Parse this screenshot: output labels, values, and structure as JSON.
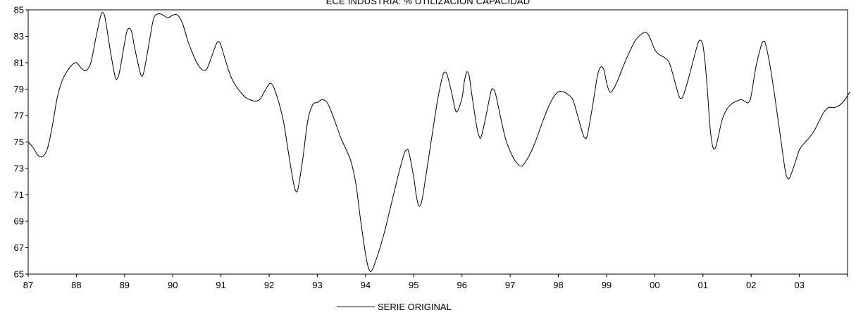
{
  "chart_data": {
    "type": "line",
    "title": "ECE INDUSTRIA: % UTILIZACIÓN CAPACIDAD",
    "xlabel": "",
    "ylabel": "",
    "xlim": [
      1987,
      2004
    ],
    "ylim": [
      65,
      85
    ],
    "yticks": [
      "65",
      "67",
      "69",
      "71",
      "73",
      "75",
      "77",
      "79",
      "81",
      "83",
      "85"
    ],
    "xticks": [
      "87",
      "88",
      "89",
      "90",
      "91",
      "92",
      "93",
      "94",
      "95",
      "96",
      "97",
      "98",
      "99",
      "00",
      "01",
      "02",
      "03"
    ],
    "legend": "bottom-center",
    "series": [
      {
        "name": "SERIE ORIGINAL",
        "color": "#000000",
        "points": [
          [
            1987.0,
            75.0
          ],
          [
            1987.1,
            74.6
          ],
          [
            1987.2,
            74.0
          ],
          [
            1987.3,
            73.9
          ],
          [
            1987.4,
            74.5
          ],
          [
            1987.5,
            76.2
          ],
          [
            1987.6,
            78.3
          ],
          [
            1987.7,
            79.6
          ],
          [
            1987.8,
            80.3
          ],
          [
            1987.9,
            80.8
          ],
          [
            1988.0,
            81.0
          ],
          [
            1988.1,
            80.6
          ],
          [
            1988.2,
            80.4
          ],
          [
            1988.3,
            81.0
          ],
          [
            1988.4,
            82.8
          ],
          [
            1988.5,
            84.5
          ],
          [
            1988.55,
            84.8
          ],
          [
            1988.6,
            84.3
          ],
          [
            1988.7,
            82.0
          ],
          [
            1988.8,
            80.0
          ],
          [
            1988.85,
            79.8
          ],
          [
            1988.9,
            80.4
          ],
          [
            1989.0,
            82.5
          ],
          [
            1989.05,
            83.4
          ],
          [
            1989.1,
            83.6
          ],
          [
            1989.15,
            83.3
          ],
          [
            1989.2,
            82.3
          ],
          [
            1989.3,
            80.6
          ],
          [
            1989.35,
            80.0
          ],
          [
            1989.4,
            80.3
          ],
          [
            1989.5,
            82.3
          ],
          [
            1989.6,
            84.3
          ],
          [
            1989.7,
            84.7
          ],
          [
            1989.8,
            84.6
          ],
          [
            1989.9,
            84.4
          ],
          [
            1990.0,
            84.6
          ],
          [
            1990.1,
            84.6
          ],
          [
            1990.2,
            84.0
          ],
          [
            1990.3,
            82.8
          ],
          [
            1990.4,
            81.8
          ],
          [
            1990.5,
            81.0
          ],
          [
            1990.6,
            80.5
          ],
          [
            1990.7,
            80.5
          ],
          [
            1990.8,
            81.4
          ],
          [
            1990.9,
            82.4
          ],
          [
            1990.95,
            82.6
          ],
          [
            1991.0,
            82.3
          ],
          [
            1991.1,
            81.1
          ],
          [
            1991.2,
            80.0
          ],
          [
            1991.3,
            79.3
          ],
          [
            1991.4,
            78.8
          ],
          [
            1991.5,
            78.4
          ],
          [
            1991.6,
            78.2
          ],
          [
            1991.7,
            78.1
          ],
          [
            1991.8,
            78.2
          ],
          [
            1991.9,
            78.8
          ],
          [
            1992.0,
            79.4
          ],
          [
            1992.05,
            79.4
          ],
          [
            1992.1,
            79.1
          ],
          [
            1992.2,
            78.0
          ],
          [
            1992.3,
            76.5
          ],
          [
            1992.4,
            74.2
          ],
          [
            1992.5,
            72.0
          ],
          [
            1992.55,
            71.3
          ],
          [
            1992.6,
            71.5
          ],
          [
            1992.7,
            73.8
          ],
          [
            1992.8,
            76.6
          ],
          [
            1992.9,
            77.8
          ],
          [
            1993.0,
            78.0
          ],
          [
            1993.1,
            78.2
          ],
          [
            1993.2,
            78.0
          ],
          [
            1993.3,
            77.2
          ],
          [
            1993.4,
            76.2
          ],
          [
            1993.5,
            75.2
          ],
          [
            1993.6,
            74.4
          ],
          [
            1993.7,
            73.5
          ],
          [
            1993.8,
            71.8
          ],
          [
            1993.9,
            69.0
          ],
          [
            1994.0,
            66.5
          ],
          [
            1994.05,
            65.6
          ],
          [
            1994.1,
            65.2
          ],
          [
            1994.15,
            65.4
          ],
          [
            1994.2,
            65.9
          ],
          [
            1994.3,
            67.0
          ],
          [
            1994.4,
            68.3
          ],
          [
            1994.5,
            69.8
          ],
          [
            1994.6,
            71.3
          ],
          [
            1994.7,
            72.8
          ],
          [
            1994.8,
            74.1
          ],
          [
            1994.85,
            74.4
          ],
          [
            1994.9,
            74.2
          ],
          [
            1995.0,
            72.3
          ],
          [
            1995.05,
            71.0
          ],
          [
            1995.1,
            70.2
          ],
          [
            1995.15,
            70.3
          ],
          [
            1995.2,
            71.2
          ],
          [
            1995.3,
            73.6
          ],
          [
            1995.4,
            76.0
          ],
          [
            1995.5,
            78.3
          ],
          [
            1995.6,
            80.0
          ],
          [
            1995.65,
            80.3
          ],
          [
            1995.7,
            80.0
          ],
          [
            1995.8,
            78.5
          ],
          [
            1995.85,
            77.6
          ],
          [
            1995.9,
            77.3
          ],
          [
            1996.0,
            78.3
          ],
          [
            1996.05,
            79.6
          ],
          [
            1996.1,
            80.3
          ],
          [
            1996.15,
            80.0
          ],
          [
            1996.2,
            78.7
          ],
          [
            1996.3,
            76.3
          ],
          [
            1996.35,
            75.5
          ],
          [
            1996.4,
            75.4
          ],
          [
            1996.5,
            77.0
          ],
          [
            1996.6,
            78.8
          ],
          [
            1996.65,
            79.0
          ],
          [
            1996.7,
            78.6
          ],
          [
            1996.8,
            76.9
          ],
          [
            1996.9,
            75.3
          ],
          [
            1997.0,
            74.3
          ],
          [
            1997.1,
            73.6
          ],
          [
            1997.2,
            73.2
          ],
          [
            1997.25,
            73.2
          ],
          [
            1997.3,
            73.4
          ],
          [
            1997.4,
            74.0
          ],
          [
            1997.5,
            74.8
          ],
          [
            1997.6,
            75.8
          ],
          [
            1997.7,
            76.8
          ],
          [
            1997.8,
            77.7
          ],
          [
            1997.9,
            78.4
          ],
          [
            1998.0,
            78.8
          ],
          [
            1998.1,
            78.8
          ],
          [
            1998.2,
            78.6
          ],
          [
            1998.3,
            78.2
          ],
          [
            1998.4,
            77.0
          ],
          [
            1998.5,
            75.7
          ],
          [
            1998.55,
            75.3
          ],
          [
            1998.6,
            75.5
          ],
          [
            1998.7,
            77.5
          ],
          [
            1998.8,
            79.8
          ],
          [
            1998.85,
            80.5
          ],
          [
            1998.9,
            80.7
          ],
          [
            1998.95,
            80.4
          ],
          [
            1999.0,
            79.5
          ],
          [
            1999.05,
            78.9
          ],
          [
            1999.1,
            78.8
          ],
          [
            1999.2,
            79.4
          ],
          [
            1999.3,
            80.3
          ],
          [
            1999.4,
            81.2
          ],
          [
            1999.5,
            82.0
          ],
          [
            1999.6,
            82.7
          ],
          [
            1999.7,
            83.1
          ],
          [
            1999.8,
            83.3
          ],
          [
            1999.85,
            83.2
          ],
          [
            1999.9,
            82.9
          ],
          [
            2000.0,
            82.0
          ],
          [
            2000.1,
            81.6
          ],
          [
            2000.2,
            81.4
          ],
          [
            2000.3,
            81.0
          ],
          [
            2000.4,
            79.8
          ],
          [
            2000.5,
            78.5
          ],
          [
            2000.55,
            78.3
          ],
          [
            2000.6,
            78.6
          ],
          [
            2000.7,
            79.8
          ],
          [
            2000.8,
            81.2
          ],
          [
            2000.9,
            82.5
          ],
          [
            2000.95,
            82.7
          ],
          [
            2001.0,
            82.3
          ],
          [
            2001.05,
            80.8
          ],
          [
            2001.1,
            78.5
          ],
          [
            2001.15,
            76.0
          ],
          [
            2001.2,
            74.7
          ],
          [
            2001.25,
            74.5
          ],
          [
            2001.3,
            75.1
          ],
          [
            2001.4,
            76.7
          ],
          [
            2001.5,
            77.5
          ],
          [
            2001.6,
            77.9
          ],
          [
            2001.7,
            78.1
          ],
          [
            2001.8,
            78.2
          ],
          [
            2001.9,
            78.0
          ],
          [
            2001.95,
            78.0
          ],
          [
            2002.0,
            78.5
          ],
          [
            2002.1,
            80.7
          ],
          [
            2002.2,
            82.2
          ],
          [
            2002.25,
            82.6
          ],
          [
            2002.3,
            82.4
          ],
          [
            2002.4,
            80.6
          ],
          [
            2002.5,
            78.2
          ],
          [
            2002.6,
            75.6
          ],
          [
            2002.7,
            73.0
          ],
          [
            2002.75,
            72.3
          ],
          [
            2002.8,
            72.3
          ],
          [
            2002.9,
            73.3
          ],
          [
            2003.0,
            74.4
          ],
          [
            2003.1,
            74.9
          ],
          [
            2003.2,
            75.3
          ],
          [
            2003.3,
            75.8
          ],
          [
            2003.4,
            76.5
          ],
          [
            2003.5,
            77.2
          ],
          [
            2003.6,
            77.6
          ],
          [
            2003.7,
            77.6
          ],
          [
            2003.8,
            77.7
          ],
          [
            2003.9,
            78.0
          ],
          [
            2004.0,
            78.5
          ],
          [
            2004.05,
            78.8
          ]
        ]
      }
    ]
  }
}
